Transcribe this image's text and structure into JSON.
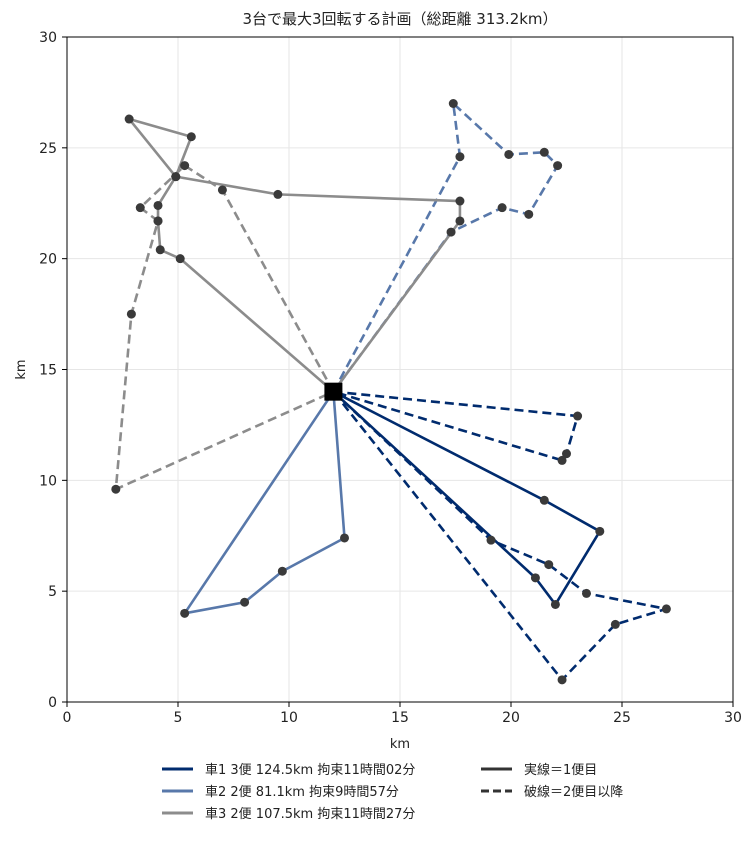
{
  "chart_data": {
    "type": "scatter",
    "title": "3台で最大3回転する計画（総距離 313.2km）",
    "xlabel": "km",
    "ylabel": "km",
    "xlim": [
      0,
      30
    ],
    "ylim": [
      0,
      30
    ],
    "xticks": [
      0,
      5,
      10,
      15,
      20,
      25,
      30
    ],
    "yticks": [
      0,
      5,
      10,
      15,
      20,
      25,
      30
    ],
    "grid": true,
    "depot": {
      "x": 12.0,
      "y": 14.0
    },
    "colors": {
      "vehicle1": "#002b6e",
      "vehicle2": "#5878aa",
      "vehicle3": "#8c8c8c",
      "stop": "#3a3a3a",
      "depot": "#000000"
    },
    "routes": [
      {
        "vehicle": 1,
        "trip": 1,
        "style": "solid",
        "points": [
          [
            12,
            14
          ],
          [
            21.5,
            9.1
          ],
          [
            24,
            7.7
          ],
          [
            22,
            4.4
          ],
          [
            21.1,
            5.6
          ],
          [
            12,
            14
          ]
        ]
      },
      {
        "vehicle": 1,
        "trip": 2,
        "style": "dashed",
        "points": [
          [
            12,
            14
          ],
          [
            23,
            12.9
          ],
          [
            22.5,
            11.2
          ],
          [
            22.3,
            10.9
          ],
          [
            12,
            14
          ]
        ]
      },
      {
        "vehicle": 1,
        "trip": 3,
        "style": "dashed",
        "points": [
          [
            12,
            14
          ],
          [
            19.1,
            7.3
          ],
          [
            21.7,
            6.2
          ],
          [
            23.4,
            4.9
          ],
          [
            27,
            4.2
          ],
          [
            24.7,
            3.5
          ],
          [
            22.3,
            1.0
          ],
          [
            12,
            14
          ]
        ]
      },
      {
        "vehicle": 2,
        "trip": 1,
        "style": "solid",
        "points": [
          [
            12,
            14
          ],
          [
            12.5,
            7.4
          ],
          [
            9.7,
            5.9
          ],
          [
            8,
            4.5
          ],
          [
            5.3,
            4.0
          ],
          [
            12,
            14
          ]
        ]
      },
      {
        "vehicle": 2,
        "trip": 2,
        "style": "dashed",
        "points": [
          [
            12,
            14
          ],
          [
            17.7,
            24.6
          ],
          [
            17.4,
            27.0
          ],
          [
            19.9,
            24.7
          ],
          [
            21.5,
            24.8
          ],
          [
            22.1,
            24.2
          ],
          [
            20.8,
            22.0
          ],
          [
            19.6,
            22.3
          ],
          [
            17.3,
            21.2
          ],
          [
            12,
            14
          ]
        ]
      },
      {
        "vehicle": 3,
        "trip": 1,
        "style": "solid",
        "points": [
          [
            12,
            14
          ],
          [
            5.1,
            20.0
          ],
          [
            4.2,
            20.4
          ],
          [
            4.1,
            21.7
          ],
          [
            4.1,
            22.4
          ],
          [
            4.9,
            23.7
          ],
          [
            5.6,
            25.5
          ],
          [
            2.8,
            26.3
          ],
          [
            4.9,
            23.7
          ],
          [
            9.5,
            22.9
          ],
          [
            17.7,
            22.6
          ],
          [
            17.7,
            21.7
          ],
          [
            12,
            14
          ]
        ]
      },
      {
        "vehicle": 3,
        "trip": 2,
        "style": "dashed",
        "points": [
          [
            12,
            14
          ],
          [
            7.0,
            23.1
          ],
          [
            5.3,
            24.2
          ],
          [
            3.3,
            22.3
          ],
          [
            4.1,
            21.7
          ],
          [
            2.9,
            17.5
          ],
          [
            2.2,
            9.6
          ],
          [
            12,
            14
          ]
        ]
      }
    ],
    "legend": {
      "placement": "bottom",
      "entries": [
        {
          "label": "車1  3便  124.5km  拘束11時間02分",
          "style": "solid",
          "color": "#002b6e"
        },
        {
          "label": "車2  2便  81.1km  拘束9時間57分",
          "style": "solid",
          "color": "#5878aa"
        },
        {
          "label": "車3  2便  107.5km  拘束11時間27分",
          "style": "solid",
          "color": "#8c8c8c"
        },
        {
          "label": "実線＝1便目",
          "style": "solid",
          "color": "#333333"
        },
        {
          "label": "破線＝2便目以降",
          "style": "dashed",
          "color": "#333333"
        }
      ]
    }
  }
}
